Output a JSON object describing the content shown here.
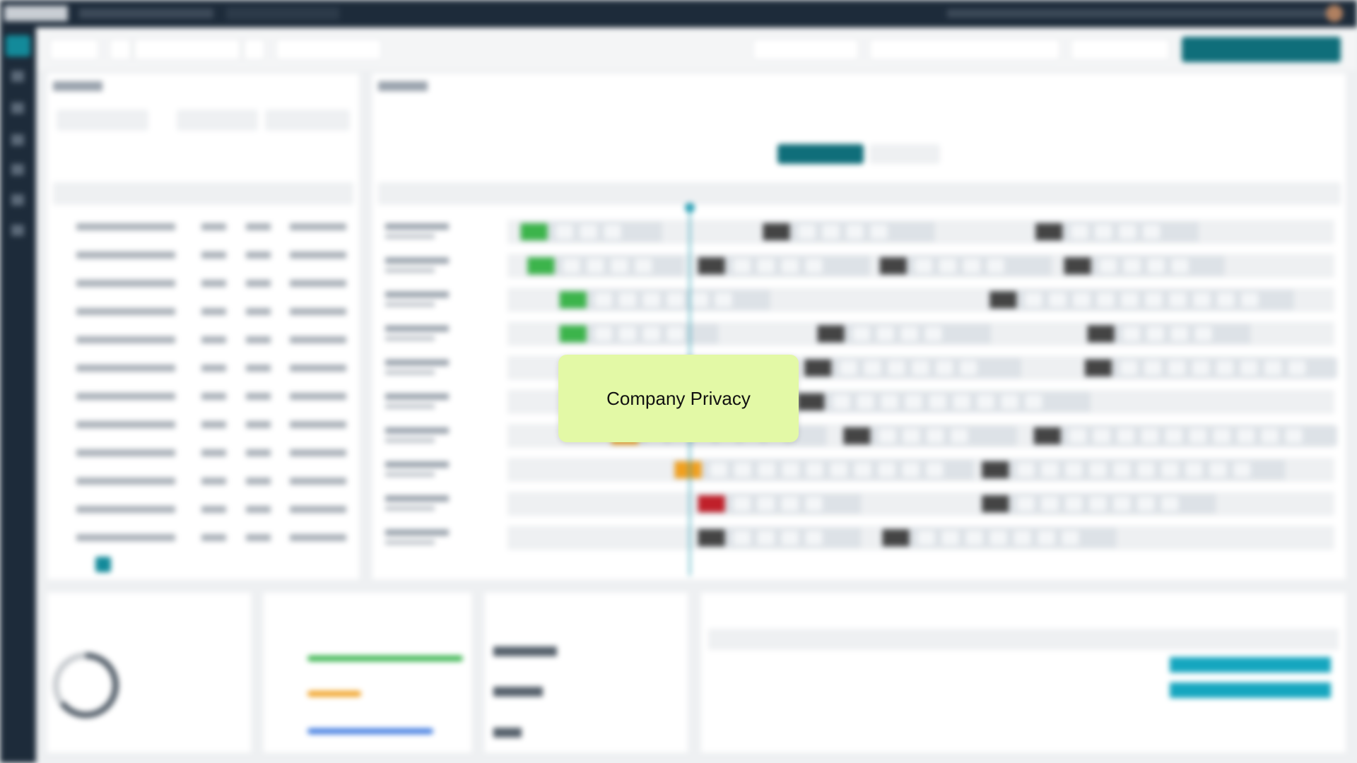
{
  "overlay": {
    "text": "Company Privacy"
  }
}
